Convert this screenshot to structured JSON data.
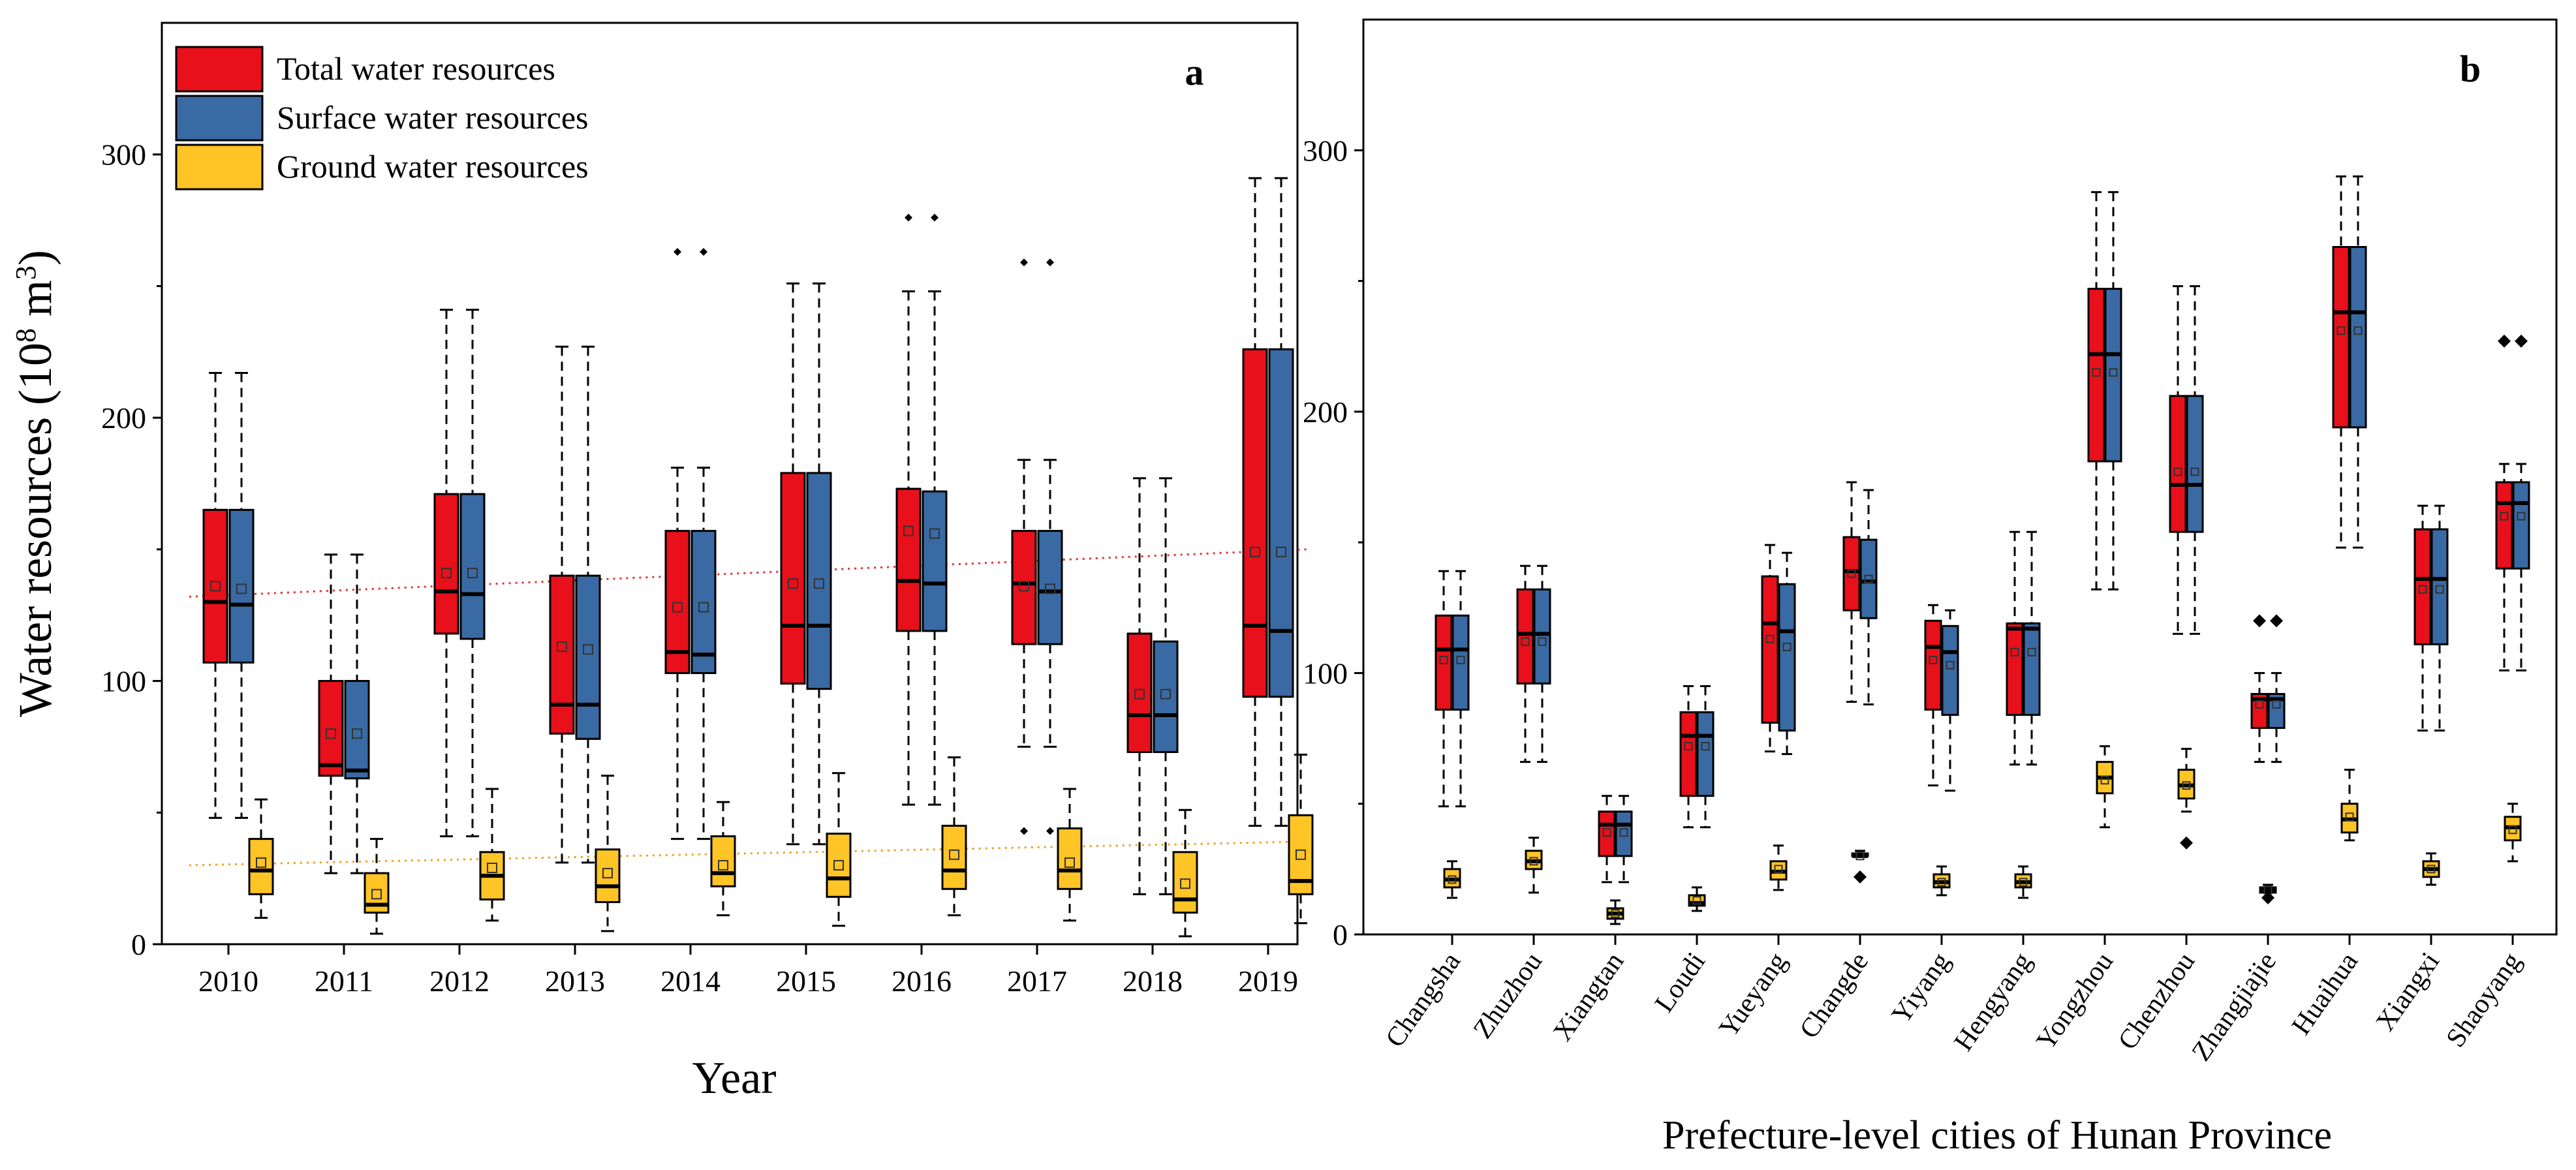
{
  "colors": {
    "total": "#e8101a",
    "surface": "#3a6aa3",
    "ground": "#ffc425",
    "trend_total": "#e83030",
    "trend_ground": "#f0a020",
    "axis": "#000000"
  },
  "chart_data": [
    {
      "id": "a",
      "type": "box",
      "panel_label": "a",
      "title": "",
      "xlabel": "Year",
      "ylabel_main": "Water resources (10",
      "ylabel_sup": "8",
      "ylabel_unit": " m",
      "ylabel_sup2": "3",
      "ylabel_close": ")",
      "ylim": [
        0,
        350
      ],
      "yticks": [
        0,
        100,
        200,
        300
      ],
      "ytick_labels": [
        "0",
        "100",
        "200",
        "300"
      ],
      "legend": {
        "position": "top-left",
        "entries": [
          "Total water resources",
          "Surface water resources",
          "Ground water resources"
        ]
      },
      "categories": [
        "2010",
        "2011",
        "2012",
        "2013",
        "2014",
        "2015",
        "2016",
        "2017",
        "2018",
        "2019"
      ],
      "series": [
        {
          "name": "Total water resources",
          "color_key": "total",
          "boxes": [
            {
              "min": 48,
              "q1": 107,
              "median": 130,
              "q3": 165,
              "max": 217,
              "mean": 136,
              "outliers": []
            },
            {
              "min": 27,
              "q1": 64,
              "median": 68,
              "q3": 100,
              "max": 148,
              "mean": 80,
              "outliers": []
            },
            {
              "min": 41,
              "q1": 118,
              "median": 134,
              "q3": 171,
              "max": 241,
              "mean": 141,
              "outliers": []
            },
            {
              "min": 31,
              "q1": 80,
              "median": 91,
              "q3": 140,
              "max": 227,
              "mean": 113,
              "outliers": []
            },
            {
              "min": 40,
              "q1": 103,
              "median": 111,
              "q3": 157,
              "max": 181,
              "mean": 128,
              "outliers": [
                263
              ]
            },
            {
              "min": 38,
              "q1": 99,
              "median": 121,
              "q3": 179,
              "max": 251,
              "mean": 137,
              "outliers": []
            },
            {
              "min": 53,
              "q1": 119,
              "median": 138,
              "q3": 173,
              "max": 248,
              "mean": 157,
              "outliers": [
                276
              ]
            },
            {
              "min": 75,
              "q1": 114,
              "median": 137,
              "q3": 157,
              "max": 184,
              "mean": 136,
              "outliers": [
                259,
                43
              ]
            },
            {
              "min": 19,
              "q1": 73,
              "median": 87,
              "q3": 118,
              "max": 177,
              "mean": 95,
              "outliers": []
            },
            {
              "min": 45,
              "q1": 94,
              "median": 121,
              "q3": 226,
              "max": 291,
              "mean": 149,
              "outliers": []
            }
          ]
        },
        {
          "name": "Surface water resources",
          "color_key": "surface",
          "boxes": [
            {
              "min": 48,
              "q1": 107,
              "median": 129,
              "q3": 165,
              "max": 217,
              "mean": 135,
              "outliers": []
            },
            {
              "min": 27,
              "q1": 63,
              "median": 66,
              "q3": 100,
              "max": 148,
              "mean": 80,
              "outliers": []
            },
            {
              "min": 41,
              "q1": 116,
              "median": 133,
              "q3": 171,
              "max": 241,
              "mean": 141,
              "outliers": []
            },
            {
              "min": 31,
              "q1": 78,
              "median": 91,
              "q3": 140,
              "max": 227,
              "mean": 112,
              "outliers": []
            },
            {
              "min": 40,
              "q1": 103,
              "median": 110,
              "q3": 157,
              "max": 181,
              "mean": 128,
              "outliers": [
                263
              ]
            },
            {
              "min": 38,
              "q1": 97,
              "median": 121,
              "q3": 179,
              "max": 251,
              "mean": 137,
              "outliers": []
            },
            {
              "min": 53,
              "q1": 119,
              "median": 137,
              "q3": 172,
              "max": 248,
              "mean": 156,
              "outliers": [
                276
              ]
            },
            {
              "min": 75,
              "q1": 114,
              "median": 134,
              "q3": 157,
              "max": 184,
              "mean": 135,
              "outliers": [
                259,
                43
              ]
            },
            {
              "min": 19,
              "q1": 73,
              "median": 87,
              "q3": 115,
              "max": 177,
              "mean": 95,
              "outliers": []
            },
            {
              "min": 45,
              "q1": 94,
              "median": 119,
              "q3": 226,
              "max": 291,
              "mean": 149,
              "outliers": []
            }
          ]
        },
        {
          "name": "Ground water resources",
          "color_key": "ground",
          "boxes": [
            {
              "min": 10,
              "q1": 19,
              "median": 28,
              "q3": 40,
              "max": 55,
              "mean": 31,
              "outliers": []
            },
            {
              "min": 4,
              "q1": 12,
              "median": 15,
              "q3": 27,
              "max": 40,
              "mean": 19,
              "outliers": []
            },
            {
              "min": 9,
              "q1": 17,
              "median": 26,
              "q3": 35,
              "max": 59,
              "mean": 29,
              "outliers": []
            },
            {
              "min": 5,
              "q1": 16,
              "median": 22,
              "q3": 36,
              "max": 64,
              "mean": 27,
              "outliers": []
            },
            {
              "min": 11,
              "q1": 22,
              "median": 27,
              "q3": 41,
              "max": 54,
              "mean": 30,
              "outliers": []
            },
            {
              "min": 7,
              "q1": 18,
              "median": 25,
              "q3": 42,
              "max": 65,
              "mean": 30,
              "outliers": []
            },
            {
              "min": 11,
              "q1": 21,
              "median": 28,
              "q3": 45,
              "max": 71,
              "mean": 34,
              "outliers": []
            },
            {
              "min": 9,
              "q1": 21,
              "median": 28,
              "q3": 44,
              "max": 59,
              "mean": 31,
              "outliers": []
            },
            {
              "min": 3,
              "q1": 12,
              "median": 17,
              "q3": 35,
              "max": 51,
              "mean": 23,
              "outliers": []
            },
            {
              "min": 8,
              "q1": 19,
              "median": 24,
              "q3": 49,
              "max": 72,
              "mean": 34,
              "outliers": []
            }
          ]
        }
      ],
      "trendlines": [
        {
          "series": "Total water resources",
          "color_key": "trend_total",
          "start": 132,
          "end": 150
        },
        {
          "series": "Ground water resources",
          "color_key": "trend_ground",
          "start": 30,
          "end": 39
        }
      ]
    },
    {
      "id": "b",
      "type": "box",
      "panel_label": "b",
      "title": "",
      "xlabel": "Prefecture-level cities of Hunan Province",
      "ylabel": "",
      "ylim": [
        0,
        350
      ],
      "yticks": [
        0,
        100,
        200,
        300
      ],
      "ytick_labels": [
        "0",
        "100",
        "200",
        "300"
      ],
      "categories": [
        "Changsha",
        "Zhuzhou",
        "Xiangtan",
        "Loudi",
        "Yueyang",
        "Changde",
        "Yiyang",
        "Hengyang",
        "Yongzhou",
        "Chenzhou",
        "Zhangjiajie",
        "Huaihua",
        "Xiangxi",
        "Shaoyang"
      ],
      "series": [
        {
          "name": "Total water resources",
          "color_key": "total",
          "boxes": [
            {
              "min": 49,
              "q1": 86,
              "median": 109,
              "q3": 122,
              "max": 139,
              "mean": 105,
              "outliers": []
            },
            {
              "min": 66,
              "q1": 96,
              "median": 115,
              "q3": 132,
              "max": 141,
              "mean": 112,
              "outliers": []
            },
            {
              "min": 20,
              "q1": 30,
              "median": 42,
              "q3": 47,
              "max": 53,
              "mean": 39,
              "outliers": []
            },
            {
              "min": 41,
              "q1": 53,
              "median": 76,
              "q3": 85,
              "max": 95,
              "mean": 72,
              "outliers": []
            },
            {
              "min": 70,
              "q1": 81,
              "median": 119,
              "q3": 137,
              "max": 149,
              "mean": 113,
              "outliers": []
            },
            {
              "min": 89,
              "q1": 124,
              "median": 139,
              "q3": 152,
              "max": 173,
              "mean": 138,
              "outliers": []
            },
            {
              "min": 57,
              "q1": 86,
              "median": 110,
              "q3": 120,
              "max": 126,
              "mean": 105,
              "outliers": []
            },
            {
              "min": 65,
              "q1": 84,
              "median": 117,
              "q3": 119,
              "max": 154,
              "mean": 108,
              "outliers": []
            },
            {
              "min": 132,
              "q1": 181,
              "median": 222,
              "q3": 247,
              "max": 284,
              "mean": 215,
              "outliers": []
            },
            {
              "min": 115,
              "q1": 154,
              "median": 172,
              "q3": 206,
              "max": 248,
              "mean": 177,
              "outliers": []
            },
            {
              "min": 66,
              "q1": 79,
              "median": 90,
              "q3": 92,
              "max": 100,
              "mean": 88,
              "outliers": [
                120
              ]
            },
            {
              "min": 148,
              "q1": 194,
              "median": 238,
              "q3": 263,
              "max": 290,
              "mean": 231,
              "outliers": []
            },
            {
              "min": 78,
              "q1": 111,
              "median": 136,
              "q3": 155,
              "max": 164,
              "mean": 132,
              "outliers": []
            },
            {
              "min": 101,
              "q1": 140,
              "median": 165,
              "q3": 173,
              "max": 180,
              "mean": 160,
              "outliers": [
                227
              ]
            }
          ]
        },
        {
          "name": "Surface water resources",
          "color_key": "surface",
          "boxes": [
            {
              "min": 49,
              "q1": 86,
              "median": 109,
              "q3": 122,
              "max": 139,
              "mean": 105,
              "outliers": []
            },
            {
              "min": 66,
              "q1": 96,
              "median": 115,
              "q3": 132,
              "max": 141,
              "mean": 112,
              "outliers": []
            },
            {
              "min": 20,
              "q1": 30,
              "median": 42,
              "q3": 47,
              "max": 53,
              "mean": 39,
              "outliers": []
            },
            {
              "min": 41,
              "q1": 53,
              "median": 76,
              "q3": 85,
              "max": 95,
              "mean": 72,
              "outliers": []
            },
            {
              "min": 69,
              "q1": 78,
              "median": 116,
              "q3": 134,
              "max": 146,
              "mean": 110,
              "outliers": []
            },
            {
              "min": 88,
              "q1": 121,
              "median": 135,
              "q3": 151,
              "max": 170,
              "mean": 136,
              "outliers": []
            },
            {
              "min": 55,
              "q1": 84,
              "median": 108,
              "q3": 118,
              "max": 124,
              "mean": 103,
              "outliers": []
            },
            {
              "min": 65,
              "q1": 84,
              "median": 117,
              "q3": 119,
              "max": 154,
              "mean": 108,
              "outliers": []
            },
            {
              "min": 132,
              "q1": 181,
              "median": 222,
              "q3": 247,
              "max": 284,
              "mean": 215,
              "outliers": []
            },
            {
              "min": 115,
              "q1": 154,
              "median": 172,
              "q3": 206,
              "max": 248,
              "mean": 177,
              "outliers": []
            },
            {
              "min": 66,
              "q1": 79,
              "median": 90,
              "q3": 92,
              "max": 100,
              "mean": 88,
              "outliers": [
                120
              ]
            },
            {
              "min": 148,
              "q1": 194,
              "median": 238,
              "q3": 263,
              "max": 290,
              "mean": 231,
              "outliers": []
            },
            {
              "min": 78,
              "q1": 111,
              "median": 136,
              "q3": 155,
              "max": 164,
              "mean": 132,
              "outliers": []
            },
            {
              "min": 101,
              "q1": 140,
              "median": 165,
              "q3": 173,
              "max": 180,
              "mean": 160,
              "outliers": [
                227
              ]
            }
          ]
        },
        {
          "name": "Ground water resources",
          "color_key": "ground",
          "boxes": [
            {
              "min": 14,
              "q1": 18,
              "median": 21,
              "q3": 25,
              "max": 28,
              "mean": 21,
              "outliers": []
            },
            {
              "min": 16,
              "q1": 25,
              "median": 28,
              "q3": 32,
              "max": 37,
              "mean": 28,
              "outliers": []
            },
            {
              "min": 4,
              "q1": 6,
              "median": 8,
              "q3": 10,
              "max": 13,
              "mean": 8,
              "outliers": []
            },
            {
              "min": 9,
              "q1": 11,
              "median": 12,
              "q3": 15,
              "max": 18,
              "mean": 13,
              "outliers": []
            },
            {
              "min": 17,
              "q1": 21,
              "median": 24,
              "q3": 28,
              "max": 34,
              "mean": 25,
              "outliers": []
            },
            {
              "min": 30,
              "q1": 30,
              "median": 30,
              "q3": 31,
              "max": 32,
              "mean": 30,
              "outliers": [
                22
              ]
            },
            {
              "min": 15,
              "q1": 18,
              "median": 20,
              "q3": 23,
              "max": 26,
              "mean": 20,
              "outliers": []
            },
            {
              "min": 14,
              "q1": 18,
              "median": 20,
              "q3": 23,
              "max": 26,
              "mean": 20,
              "outliers": []
            },
            {
              "min": 41,
              "q1": 54,
              "median": 60,
              "q3": 66,
              "max": 72,
              "mean": 59,
              "outliers": []
            },
            {
              "min": 47,
              "q1": 52,
              "median": 57,
              "q3": 63,
              "max": 71,
              "mean": 57,
              "outliers": [
                35
              ]
            },
            {
              "min": 16,
              "q1": 16,
              "median": 17,
              "q3": 18,
              "max": 19,
              "mean": 17,
              "outliers": [
                14
              ]
            },
            {
              "min": 36,
              "q1": 39,
              "median": 44,
              "q3": 50,
              "max": 63,
              "mean": 45,
              "outliers": []
            },
            {
              "min": 19,
              "q1": 22,
              "median": 25,
              "q3": 28,
              "max": 31,
              "mean": 25,
              "outliers": []
            },
            {
              "min": 28,
              "q1": 36,
              "median": 41,
              "q3": 45,
              "max": 50,
              "mean": 40,
              "outliers": []
            }
          ]
        }
      ]
    }
  ]
}
